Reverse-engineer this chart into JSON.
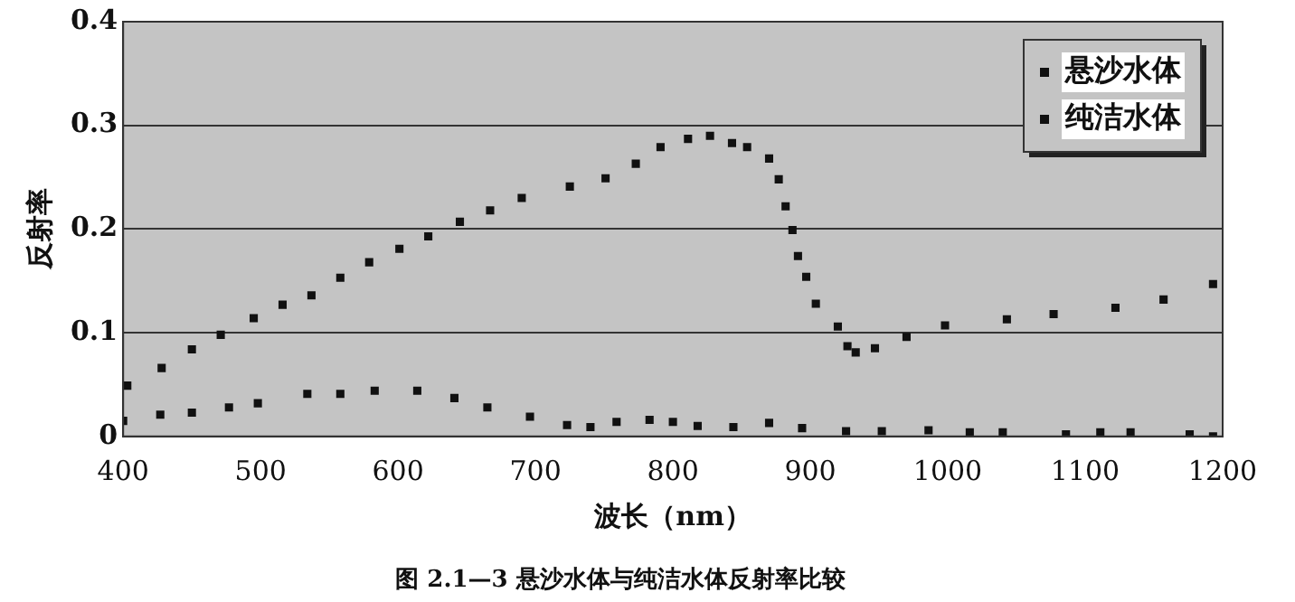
{
  "chart_data": {
    "type": "scatter",
    "title": "图 2.1—3 悬沙水体与纯洁水体反射率比较",
    "xlabel": "波长（nm）",
    "ylabel": "反射率",
    "xlim": [
      400,
      1200
    ],
    "xticks": [
      400,
      500,
      600,
      700,
      800,
      900,
      1000,
      1100,
      1200
    ],
    "ylim": [
      0,
      0.4
    ],
    "yticks": [
      0,
      0.1,
      0.2,
      0.3,
      0.4
    ],
    "grid": "y",
    "legend": "top right",
    "marker": "square",
    "series": [
      {
        "name": "悬沙水体",
        "color": "#111111",
        "x": [
          403,
          428,
          450,
          471,
          495,
          516,
          537,
          558,
          579,
          601,
          622,
          645,
          667,
          690,
          725,
          751,
          773,
          791,
          811,
          827,
          843,
          854,
          870,
          877,
          882,
          887,
          891,
          897,
          904,
          920,
          927,
          933,
          947,
          970,
          998,
          1043,
          1077,
          1122,
          1157,
          1193
        ],
        "values": [
          0.049,
          0.066,
          0.084,
          0.098,
          0.114,
          0.127,
          0.136,
          0.153,
          0.168,
          0.181,
          0.193,
          0.207,
          0.218,
          0.23,
          0.241,
          0.249,
          0.263,
          0.279,
          0.287,
          0.29,
          0.283,
          0.279,
          0.268,
          0.248,
          0.222,
          0.199,
          0.174,
          0.154,
          0.128,
          0.106,
          0.087,
          0.081,
          0.085,
          0.096,
          0.107,
          0.113,
          0.118,
          0.124,
          0.132,
          0.147
        ]
      },
      {
        "name": "纯洁水体",
        "color": "#111111",
        "x": [
          400,
          427,
          450,
          477,
          498,
          534,
          558,
          583,
          614,
          641,
          665,
          696,
          723,
          740,
          759,
          783,
          800,
          818,
          844,
          870,
          894,
          926,
          952,
          986,
          1016,
          1040,
          1086,
          1111,
          1133,
          1176,
          1193
        ],
        "values": [
          0.015,
          0.021,
          0.023,
          0.028,
          0.032,
          0.041,
          0.041,
          0.044,
          0.044,
          0.037,
          0.028,
          0.019,
          0.011,
          0.009,
          0.014,
          0.016,
          0.014,
          0.01,
          0.009,
          0.013,
          0.008,
          0.005,
          0.005,
          0.006,
          0.004,
          0.004,
          0.002,
          0.004,
          0.004,
          0.002,
          0.0
        ]
      }
    ]
  }
}
